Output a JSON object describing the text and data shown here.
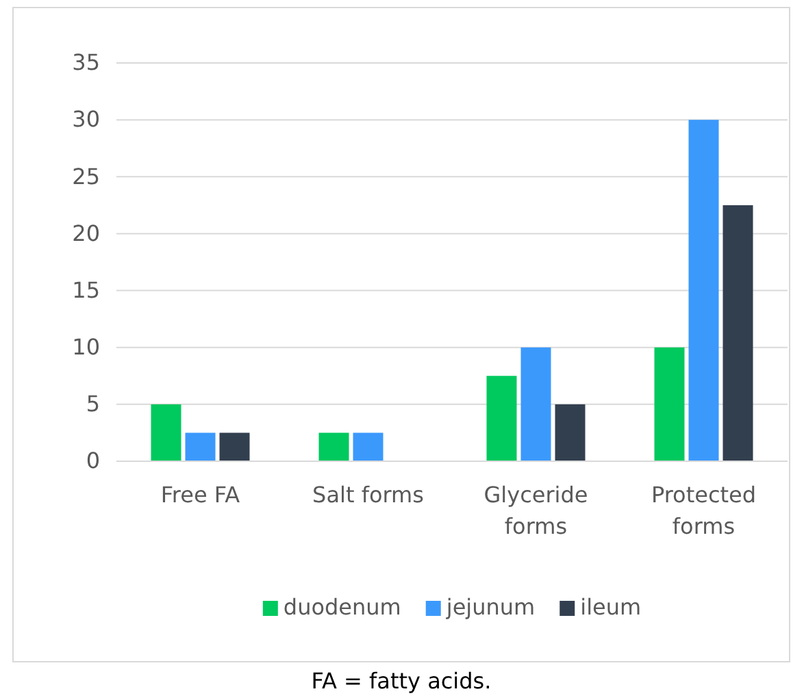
{
  "chart_data": {
    "type": "bar",
    "categories": [
      "Free FA",
      "Salt forms",
      "Glyceride forms",
      "Protected forms"
    ],
    "series": [
      {
        "name": "duodenum",
        "color": "#00c95e",
        "values": [
          5,
          2.5,
          7.5,
          10
        ]
      },
      {
        "name": "jejunum",
        "color": "#3b99fc",
        "values": [
          2.5,
          2.5,
          10,
          30
        ]
      },
      {
        "name": "ileum",
        "color": "#323f4f",
        "values": [
          2.5,
          null,
          5,
          22.5
        ]
      }
    ],
    "ylim": [
      0,
      35
    ],
    "yticks": [
      0,
      5,
      10,
      15,
      20,
      25,
      30,
      35
    ],
    "grid": "y",
    "legend": "bottom",
    "annotations": [
      "FA = fatty acids."
    ]
  }
}
